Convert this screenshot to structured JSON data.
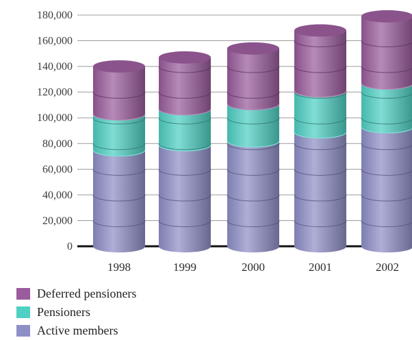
{
  "chart_data": {
    "type": "bar",
    "stacked": true,
    "style": "3d-cylinder",
    "title": "",
    "xlabel": "",
    "ylabel": "",
    "ylim": [
      0,
      180000
    ],
    "yticks": [
      "0",
      "20,000",
      "40,000",
      "60,000",
      "80,000",
      "100,000",
      "120,000",
      "140,000",
      "160,000",
      "180,000"
    ],
    "categories": [
      "1998",
      "1999",
      "2000",
      "2001",
      "2002"
    ],
    "series": [
      {
        "name": "Active members",
        "color": "#8f8fc8",
        "values": [
          75000,
          79000,
          82000,
          89000,
          93000
        ]
      },
      {
        "name": "Pensioners",
        "color": "#4fd0c4",
        "values": [
          28000,
          28000,
          29000,
          32000,
          34000
        ]
      },
      {
        "name": "Deferred pensioners",
        "color": "#9a5c9c",
        "values": [
          37000,
          40000,
          43000,
          47000,
          52000
        ]
      }
    ],
    "grid": true,
    "legend_position": "bottom-left"
  },
  "legend": {
    "items": [
      {
        "label": "Deferred pensioners",
        "color": "#9a5c9c"
      },
      {
        "label": "Pensioners",
        "color": "#4fd0c4"
      },
      {
        "label": "Active members",
        "color": "#8f8fc8"
      }
    ]
  }
}
